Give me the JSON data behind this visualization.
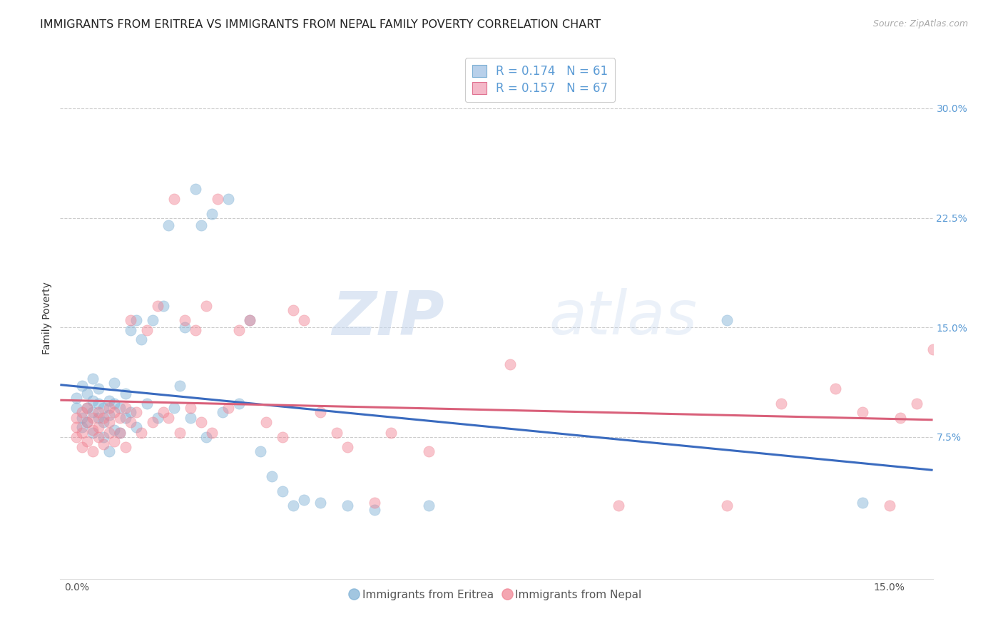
{
  "title": "IMMIGRANTS FROM ERITREA VS IMMIGRANTS FROM NEPAL FAMILY POVERTY CORRELATION CHART",
  "source": "Source: ZipAtlas.com",
  "ylabel": "Family Poverty",
  "legend_entries": [
    {
      "label": "R = 0.174   N = 61",
      "facecolor": "#b8d0ea",
      "edgecolor": "#7bafd4"
    },
    {
      "label": "R = 0.157   N = 67",
      "facecolor": "#f4b8c8",
      "edgecolor": "#e07090"
    }
  ],
  "legend_bottom": [
    "Immigrants from Eritrea",
    "Immigrants from Nepal"
  ],
  "eritrea_color": "#7bafd4",
  "nepal_color": "#f08090",
  "eritrea_line_color": "#3a6bbf",
  "nepal_line_color": "#d9607a",
  "background_color": "#ffffff",
  "watermark_zip": "ZIP",
  "watermark_atlas": "atlas",
  "title_fontsize": 11.5,
  "axis_label_fontsize": 10,
  "tick_fontsize": 10,
  "scatter_alpha": 0.45,
  "scatter_size": 120,
  "xlim": [
    -0.003,
    0.158
  ],
  "ylim": [
    -0.022,
    0.335
  ],
  "xticks": [
    0.0,
    0.15
  ],
  "xticklabels": [
    "0.0%",
    "15.0%"
  ],
  "yticks": [
    0.075,
    0.15,
    0.225,
    0.3
  ],
  "yticklabels": [
    "7.5%",
    "15.0%",
    "22.5%",
    "30.0%"
  ],
  "eritrea_x": [
    0.0,
    0.0,
    0.001,
    0.001,
    0.001,
    0.002,
    0.002,
    0.002,
    0.003,
    0.003,
    0.003,
    0.003,
    0.004,
    0.004,
    0.004,
    0.005,
    0.005,
    0.005,
    0.006,
    0.006,
    0.006,
    0.007,
    0.007,
    0.007,
    0.008,
    0.008,
    0.009,
    0.009,
    0.01,
    0.01,
    0.011,
    0.011,
    0.012,
    0.013,
    0.014,
    0.015,
    0.016,
    0.017,
    0.018,
    0.019,
    0.02,
    0.021,
    0.022,
    0.023,
    0.024,
    0.025,
    0.027,
    0.028,
    0.03,
    0.032,
    0.034,
    0.036,
    0.038,
    0.04,
    0.042,
    0.045,
    0.05,
    0.055,
    0.065,
    0.12,
    0.145
  ],
  "eritrea_y": [
    0.095,
    0.102,
    0.088,
    0.11,
    0.082,
    0.095,
    0.085,
    0.105,
    0.1,
    0.092,
    0.078,
    0.115,
    0.098,
    0.088,
    0.108,
    0.095,
    0.075,
    0.085,
    0.1,
    0.09,
    0.065,
    0.098,
    0.08,
    0.112,
    0.095,
    0.078,
    0.105,
    0.088,
    0.148,
    0.092,
    0.155,
    0.082,
    0.142,
    0.098,
    0.155,
    0.088,
    0.165,
    0.22,
    0.095,
    0.11,
    0.15,
    0.088,
    0.245,
    0.22,
    0.075,
    0.228,
    0.092,
    0.238,
    0.098,
    0.155,
    0.065,
    0.048,
    0.038,
    0.028,
    0.032,
    0.03,
    0.028,
    0.025,
    0.028,
    0.155,
    0.03
  ],
  "nepal_x": [
    0.0,
    0.0,
    0.0,
    0.001,
    0.001,
    0.001,
    0.002,
    0.002,
    0.002,
    0.003,
    0.003,
    0.003,
    0.004,
    0.004,
    0.004,
    0.005,
    0.005,
    0.006,
    0.006,
    0.006,
    0.007,
    0.007,
    0.008,
    0.008,
    0.009,
    0.009,
    0.01,
    0.01,
    0.011,
    0.012,
    0.013,
    0.014,
    0.015,
    0.016,
    0.017,
    0.018,
    0.019,
    0.02,
    0.021,
    0.022,
    0.023,
    0.024,
    0.025,
    0.026,
    0.028,
    0.03,
    0.032,
    0.035,
    0.038,
    0.04,
    0.042,
    0.045,
    0.048,
    0.05,
    0.055,
    0.058,
    0.065,
    0.08,
    0.1,
    0.12,
    0.13,
    0.14,
    0.145,
    0.15,
    0.152,
    0.155,
    0.158
  ],
  "nepal_y": [
    0.088,
    0.082,
    0.075,
    0.092,
    0.078,
    0.068,
    0.085,
    0.095,
    0.072,
    0.088,
    0.08,
    0.065,
    0.092,
    0.075,
    0.082,
    0.088,
    0.07,
    0.095,
    0.078,
    0.085,
    0.092,
    0.072,
    0.088,
    0.078,
    0.095,
    0.068,
    0.155,
    0.085,
    0.092,
    0.078,
    0.148,
    0.085,
    0.165,
    0.092,
    0.088,
    0.238,
    0.078,
    0.155,
    0.095,
    0.148,
    0.085,
    0.165,
    0.078,
    0.238,
    0.095,
    0.148,
    0.155,
    0.085,
    0.075,
    0.162,
    0.155,
    0.092,
    0.078,
    0.068,
    0.03,
    0.078,
    0.065,
    0.125,
    0.028,
    0.028,
    0.098,
    0.108,
    0.092,
    0.028,
    0.088,
    0.098,
    0.135
  ]
}
